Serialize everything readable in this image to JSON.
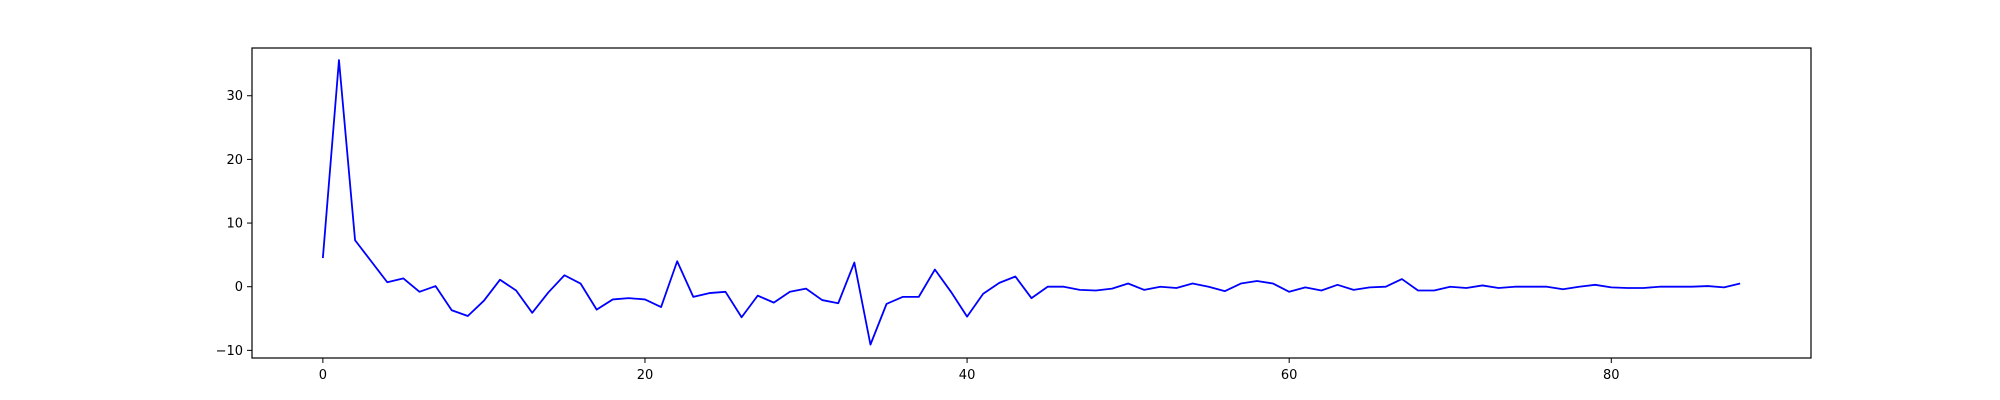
{
  "chart_data": {
    "type": "line",
    "title": "",
    "xlabel": "",
    "ylabel": "",
    "xlim": [
      -4.4,
      92.4
    ],
    "ylim": [
      -11.2,
      37.5
    ],
    "xticks": [
      0,
      20,
      40,
      60,
      80
    ],
    "yticks": [
      -10,
      0,
      10,
      20,
      30
    ],
    "grid": false,
    "legend": null,
    "series": [
      {
        "color": "#0000ff",
        "x": [
          0,
          1,
          2,
          3,
          4,
          5,
          6,
          7,
          8,
          9,
          10,
          11,
          12,
          13,
          14,
          15,
          16,
          17,
          18,
          19,
          20,
          21,
          22,
          23,
          24,
          25,
          26,
          27,
          28,
          29,
          30,
          31,
          32,
          33,
          34,
          35,
          36,
          37,
          38,
          39,
          40,
          41,
          42,
          43,
          44,
          45,
          46,
          47,
          48,
          49,
          50,
          51,
          52,
          53,
          54,
          55,
          56,
          57,
          58,
          59,
          60,
          61,
          62,
          63,
          64,
          65,
          66,
          67,
          68,
          69,
          70,
          71,
          72,
          73,
          74,
          75,
          76,
          77,
          78,
          79,
          80,
          81,
          82,
          83,
          84,
          85,
          86,
          87,
          88
        ],
        "y": [
          4.5,
          35.6,
          7.3,
          4.0,
          0.7,
          1.3,
          -0.8,
          0.1,
          -3.7,
          -4.6,
          -2.2,
          1.1,
          -0.6,
          -4.1,
          -0.9,
          1.8,
          0.5,
          -3.6,
          -2.0,
          -1.8,
          -2.0,
          -3.2,
          4.0,
          -1.6,
          -1.0,
          -0.8,
          -4.8,
          -1.4,
          -2.5,
          -0.8,
          -0.3,
          -2.1,
          -2.6,
          3.8,
          -9.1,
          -2.7,
          -1.6,
          -1.6,
          2.7,
          -0.8,
          -4.7,
          -1.1,
          0.6,
          1.6,
          -1.8,
          0.0,
          0.0,
          -0.5,
          -0.6,
          -0.3,
          0.5,
          -0.5,
          0.0,
          -0.2,
          0.5,
          0.0,
          -0.7,
          0.5,
          0.9,
          0.5,
          -0.8,
          -0.1,
          -0.6,
          0.3,
          -0.5,
          -0.1,
          0.0,
          1.2,
          -0.6,
          -0.6,
          0.0,
          -0.2,
          0.2,
          -0.2,
          0.0,
          0.0,
          0.0,
          -0.4,
          0.0,
          0.3,
          -0.1,
          -0.2,
          -0.2,
          0.0,
          0.0,
          0.0,
          0.1,
          -0.1,
          0.5
        ]
      }
    ]
  }
}
